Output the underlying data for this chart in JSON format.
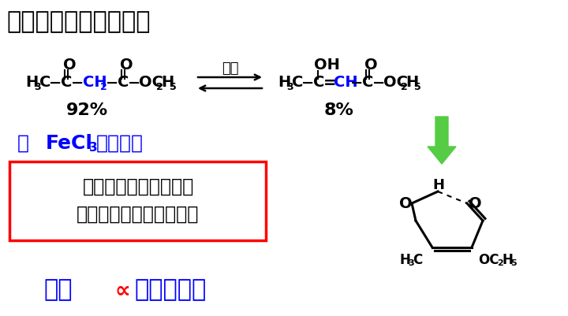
{
  "title": "酮式和烯醇式互变异构",
  "title_fontsize": 22,
  "title_color": "#000000",
  "background_color": "#ffffff",
  "arrow_label": "室温",
  "keto_percent": "92%",
  "enol_percent": "8%",
  "fecl3_color": "#0000FF",
  "box_text_line1": "此烯醇式较稳定。因为",
  "box_text_line2": "分子内氢键、共轭体系。",
  "box_text_color": "#000000",
  "box_border_color": "#FF0000",
  "bottom_text_part1": "酸性",
  "bottom_text_symbol": "∝",
  "bottom_text_part2": "烯醇式含量",
  "bottom_text_color": "#0000FF",
  "bottom_symbol_color": "#FF0000",
  "green_arrow_color": "#55CC44",
  "blue_highlight": "#0000FF"
}
